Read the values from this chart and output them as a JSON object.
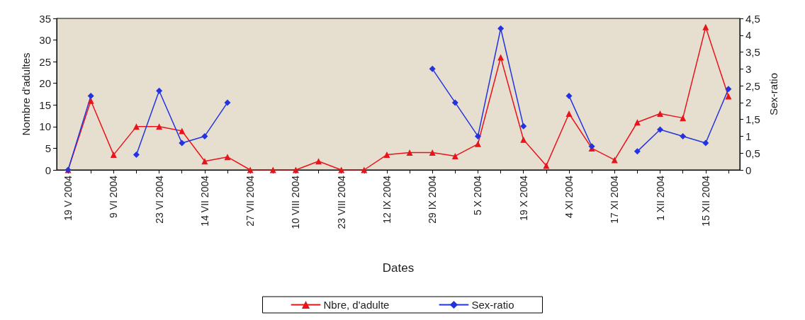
{
  "chart_data": {
    "type": "line",
    "xlabel": "Dates",
    "ylabel": "Nombre d'adultes",
    "y2label": "Sex-ratio",
    "categories": [
      "19 V 2004",
      null,
      "9 VI 2004",
      null,
      "23 VI 2004",
      null,
      "14 VII 2004",
      null,
      "27 VII 2004",
      null,
      "10 VIII 2004",
      null,
      "23 VIII 2004",
      null,
      "12 IX 2004",
      null,
      "29 IX 2004",
      null,
      "5 X 2004",
      null,
      "19 X 2004",
      null,
      "4 XI 2004",
      null,
      "17 XI 2004",
      null,
      "1 XII 2004",
      null,
      "15 XII 2004",
      null
    ],
    "series": [
      {
        "name": "Nbre, d'adulte",
        "color": "#e8141c",
        "marker": "triangle",
        "values": [
          0,
          16,
          3.5,
          10,
          10,
          9,
          2,
          3,
          0,
          0,
          0,
          2,
          0,
          0,
          3.5,
          4,
          4,
          3.2,
          6,
          26,
          7,
          1,
          13,
          5,
          2.3,
          11,
          13,
          12,
          33,
          17
        ]
      },
      {
        "name": "Sex-ratio",
        "color": "#2433e0",
        "marker": "diamond",
        "axis": "y2",
        "values": [
          0,
          2.2,
          null,
          0.45,
          2.35,
          0.8,
          1,
          2,
          null,
          null,
          null,
          null,
          null,
          null,
          null,
          null,
          3,
          2,
          1,
          4.2,
          1.3,
          null,
          2.2,
          0.7,
          null,
          0.55,
          1.2,
          1,
          0.8,
          2.4
        ]
      }
    ],
    "ylim": [
      0,
      35
    ],
    "yticks": [
      0,
      5,
      10,
      15,
      20,
      25,
      30,
      35
    ],
    "y2lim": [
      0,
      4.5
    ],
    "y2ticks": [
      0,
      {
        "value": 0.5,
        "label": "0,5"
      },
      1,
      {
        "value": 1.5,
        "label": "1,5"
      },
      2,
      {
        "value": 2.5,
        "label": "2,5"
      },
      3,
      {
        "value": 3.5,
        "label": "3,5"
      },
      4,
      {
        "value": 4.5,
        "label": "4,5"
      }
    ],
    "grid": false,
    "legend": "bottom",
    "line_style": "solid"
  }
}
